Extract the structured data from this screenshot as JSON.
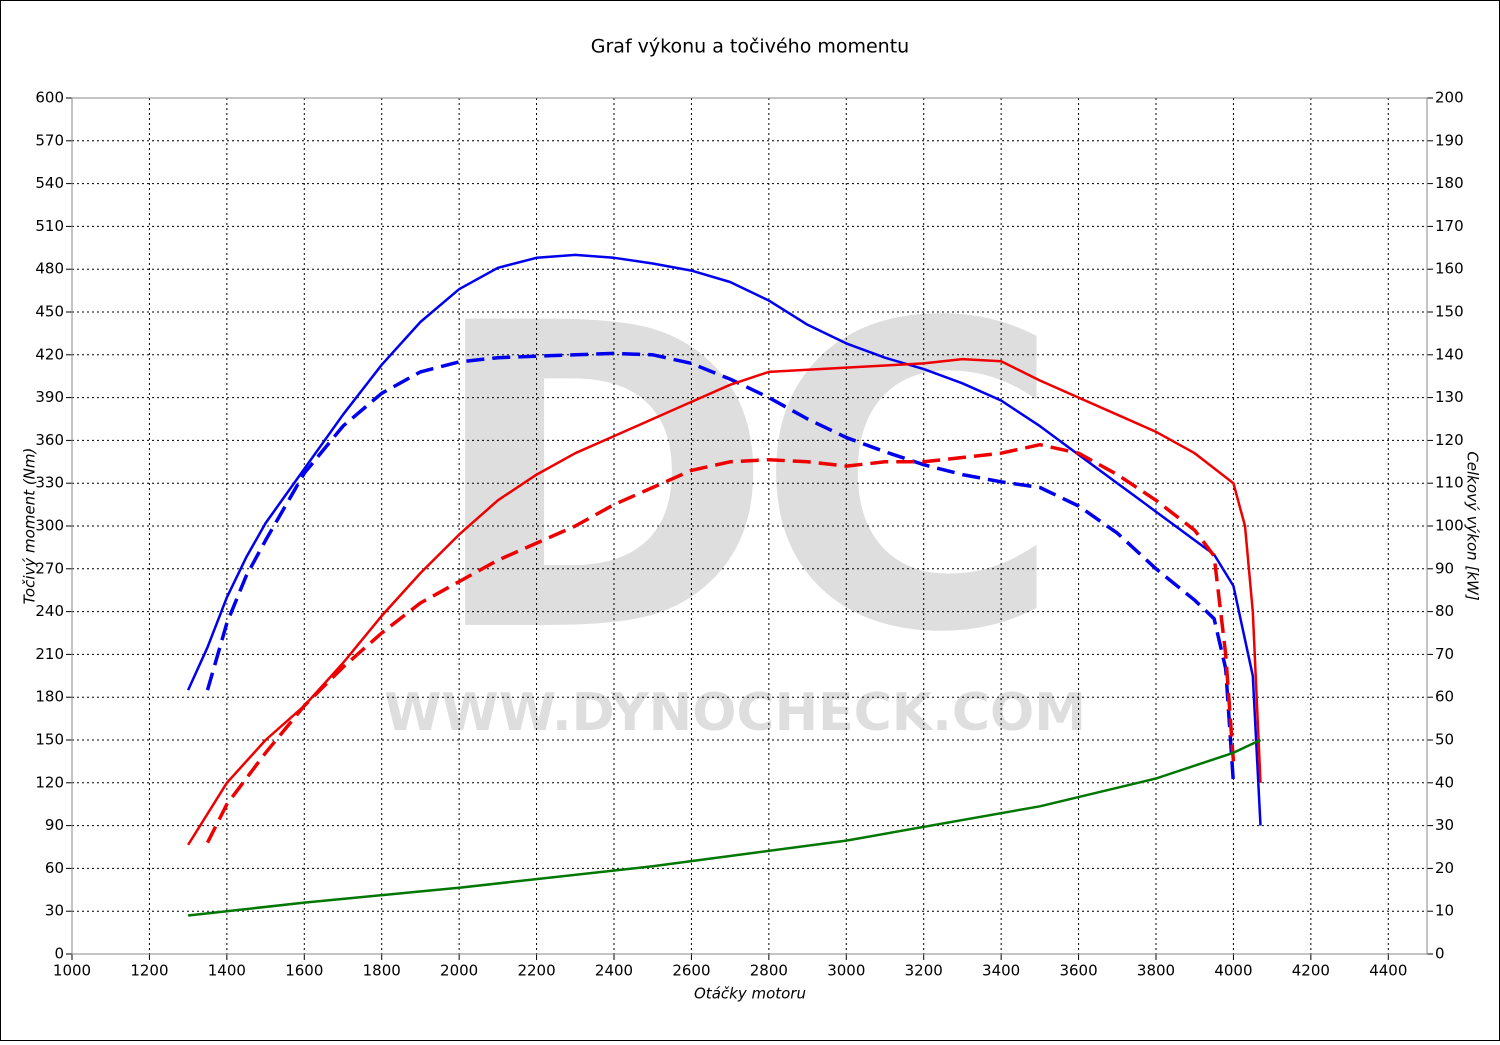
{
  "chart_data": {
    "type": "line",
    "title": "Graf výkonu a točivého momentu",
    "xlabel": "Otáčky motoru",
    "ylabel": "Točivý moment (Nm)",
    "y2label": "Celkový výkon [kW]",
    "watermark": "DC",
    "watermark_url": "WWW.DYNOCHECK.COM",
    "xlim": [
      1000,
      4500
    ],
    "xticks": [
      1000,
      1200,
      1400,
      1600,
      1800,
      2000,
      2200,
      2400,
      2600,
      2800,
      3000,
      3200,
      3400,
      3600,
      3800,
      4000,
      4200,
      4400
    ],
    "ylim": [
      0,
      600
    ],
    "yticks": [
      0,
      30,
      60,
      90,
      120,
      150,
      180,
      210,
      240,
      270,
      300,
      330,
      360,
      390,
      420,
      450,
      480,
      510,
      540,
      570,
      600
    ],
    "y2lim": [
      0,
      200
    ],
    "y2ticks": [
      0,
      10,
      20,
      30,
      40,
      50,
      60,
      70,
      80,
      90,
      100,
      110,
      120,
      130,
      140,
      150,
      160,
      170,
      180,
      190,
      200
    ],
    "grid": true,
    "series": [
      {
        "color": "#0000ee",
        "dashed": false,
        "axis": "y",
        "x": [
          1300,
          1350,
          1400,
          1450,
          1500,
          1600,
          1700,
          1800,
          1900,
          2000,
          2100,
          2200,
          2300,
          2400,
          2500,
          2600,
          2700,
          2800,
          2900,
          3000,
          3100,
          3200,
          3300,
          3400,
          3500,
          3600,
          3700,
          3800,
          3900,
          3950,
          4000,
          4050,
          4070
        ],
        "values": [
          185,
          215,
          250,
          278,
          302,
          340,
          378,
          413,
          443,
          466,
          481,
          488,
          490,
          488,
          484,
          479,
          471,
          458,
          441,
          428,
          418,
          410,
          400,
          388,
          370,
          350,
          330,
          310,
          290,
          280,
          258,
          195,
          90
        ]
      },
      {
        "color": "#0000ee",
        "dashed": true,
        "axis": "y",
        "x": [
          1350,
          1400,
          1450,
          1500,
          1600,
          1700,
          1800,
          1900,
          2000,
          2100,
          2200,
          2300,
          2400,
          2500,
          2600,
          2700,
          2800,
          2900,
          3000,
          3100,
          3200,
          3300,
          3400,
          3500,
          3600,
          3700,
          3800,
          3900,
          3950,
          3980,
          4000
        ],
        "values": [
          185,
          232,
          265,
          290,
          337,
          370,
          393,
          408,
          415,
          418,
          419,
          420,
          421,
          420,
          414,
          403,
          390,
          375,
          362,
          352,
          343,
          336,
          331,
          327,
          314,
          295,
          270,
          248,
          235,
          200,
          120
        ]
      },
      {
        "color": "#ee0000",
        "dashed": false,
        "axis": "y2",
        "x": [
          1300,
          1400,
          1500,
          1600,
          1700,
          1800,
          1900,
          2000,
          2100,
          2200,
          2300,
          2400,
          2500,
          2600,
          2700,
          2800,
          2900,
          3000,
          3100,
          3200,
          3300,
          3400,
          3500,
          3600,
          3700,
          3800,
          3900,
          4000,
          4030,
          4050,
          4070
        ],
        "values": [
          25.5,
          40,
          50,
          58,
          68,
          79,
          89,
          98,
          106,
          112,
          117,
          121,
          125,
          129,
          133,
          136,
          136.5,
          137,
          137.5,
          138,
          139,
          138.5,
          134,
          130,
          126,
          122,
          117,
          110,
          100,
          80,
          40
        ]
      },
      {
        "color": "#ee0000",
        "dashed": true,
        "axis": "y2",
        "x": [
          1350,
          1400,
          1500,
          1600,
          1700,
          1800,
          1900,
          2000,
          2100,
          2200,
          2300,
          2400,
          2500,
          2600,
          2700,
          2800,
          2900,
          3000,
          3100,
          3200,
          3300,
          3400,
          3500,
          3600,
          3700,
          3800,
          3900,
          3950,
          3980,
          4000
        ],
        "values": [
          26,
          35,
          47,
          58,
          67,
          75,
          82,
          87,
          92,
          96,
          100,
          105,
          109,
          113,
          115,
          115.5,
          115,
          114,
          115,
          115,
          116,
          117,
          119,
          117,
          112,
          106,
          99,
          93,
          70,
          45
        ]
      },
      {
        "color": "#007700",
        "dashed": false,
        "axis": "y2",
        "x": [
          1300,
          1600,
          2000,
          2500,
          3000,
          3500,
          3800,
          4000,
          4070
        ],
        "values": [
          9,
          12,
          15.5,
          20.5,
          26.5,
          34.5,
          41,
          47,
          50
        ]
      }
    ]
  }
}
